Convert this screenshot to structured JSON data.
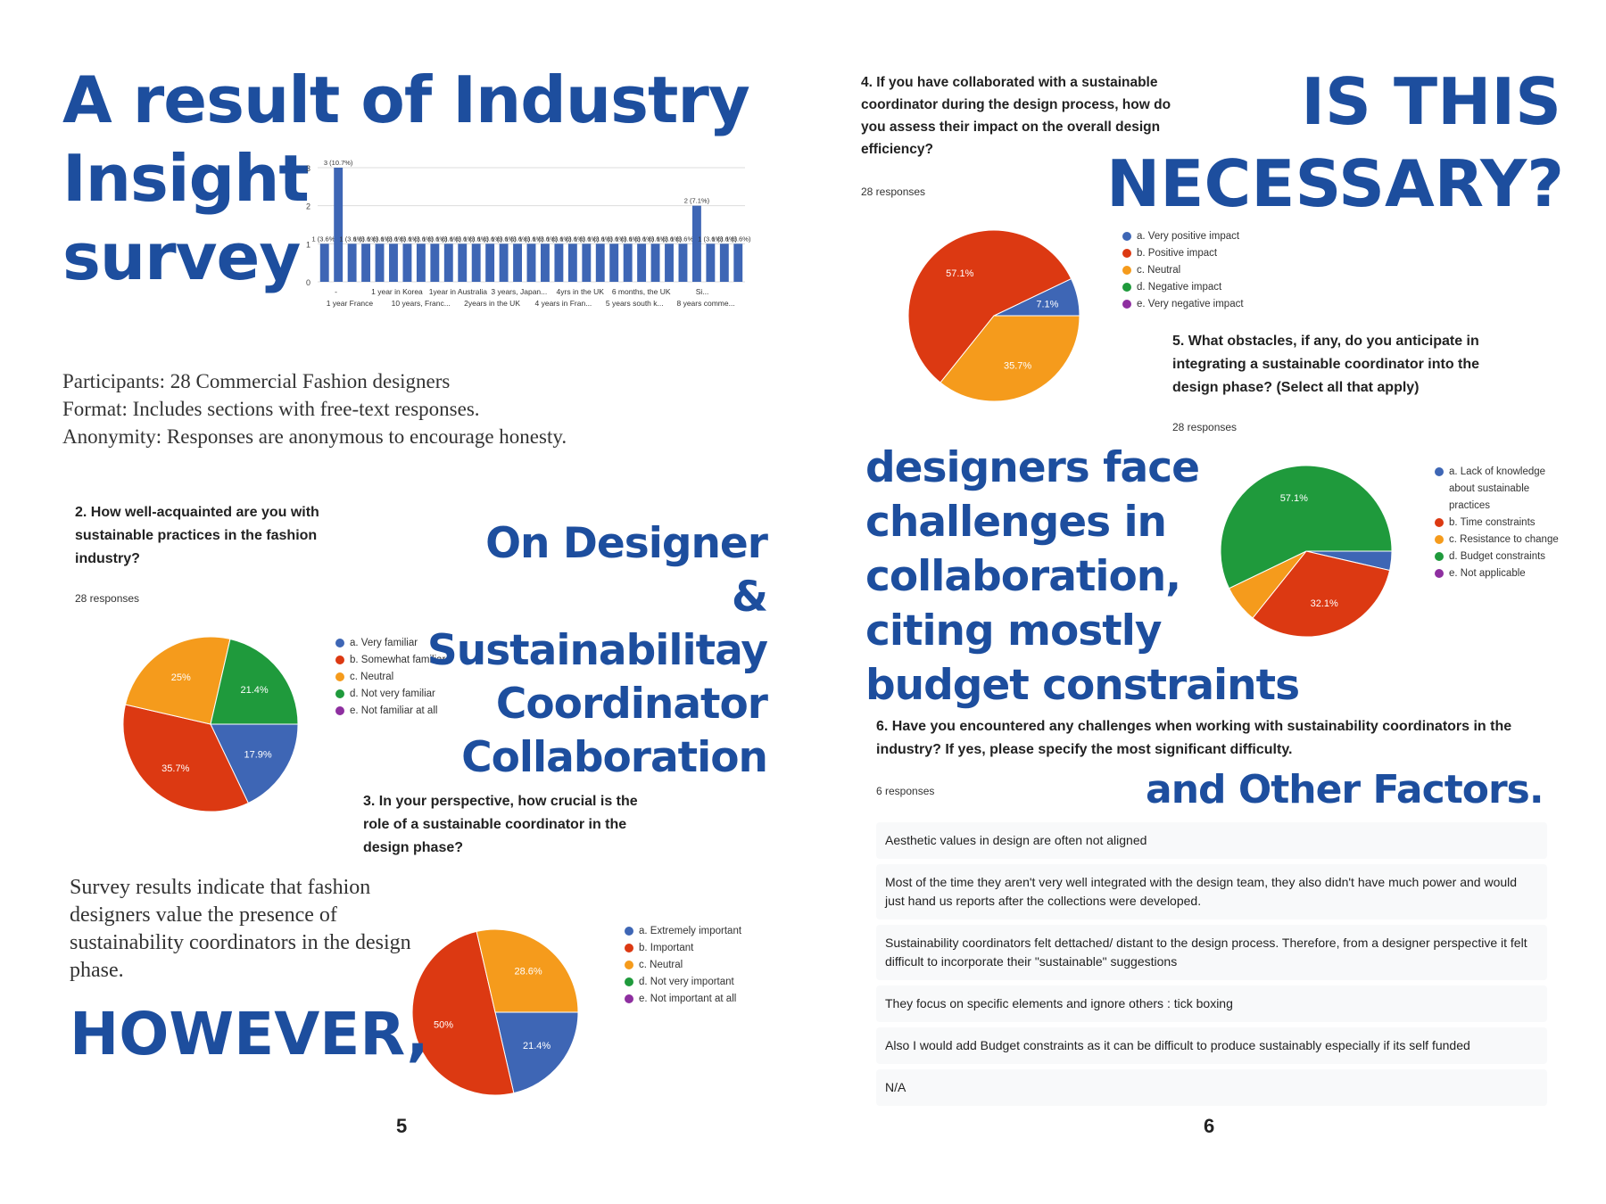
{
  "colors": {
    "blue": "#3e66b5",
    "red": "#dc3912",
    "orange": "#f59b1c",
    "green": "#1f9a3c",
    "purple": "#8e2fa0",
    "headline": "#1d4e9e"
  },
  "left_page": {
    "title_lines": [
      "A result of Industry",
      "Insight",
      "survey"
    ],
    "participants": "Participants: 28 Commercial Fashion designers",
    "format": "Format: Includes sections with free-text responses.",
    "anonymity": "Anonymity: Responses are anonymous to encourage honesty.",
    "collab_heading": [
      "On Designer",
      "& Sustainabilitay",
      "Coordinator",
      "Collaboration"
    ],
    "q2": {
      "text": "2. How well-acquainted are you with sustainable practices in the fashion industry?",
      "responses": "28 responses"
    },
    "q3": {
      "text": "3. In your perspective, how crucial is the role of a sustainable coordinator in the design phase?"
    },
    "summary": "Survey results indicate that fashion designers value the presence of sustainability coordinators in the design phase.",
    "however": "HOWEVER,",
    "page_number": "5"
  },
  "right_page": {
    "q4": {
      "text": "4. If you have collaborated with a sustainable coordinator during the design process, how do you assess their impact on the overall design efficiency?",
      "responses": "28 responses"
    },
    "necessary": [
      "IS THIS",
      "NECESSARY?"
    ],
    "q5": {
      "text": "5. What obstacles, if any, do you anticipate in integrating a sustainable coordinator into the design phase? (Select all that apply)",
      "responses": "28 responses"
    },
    "challenges": [
      "designers face",
      "challenges in",
      "collaboration,",
      "citing mostly",
      "budget constraints"
    ],
    "q6": {
      "text": "6. Have you encountered any challenges when working with sustainability coordinators in the industry? If yes, please specify the most significant difficulty.",
      "responses": "6 responses"
    },
    "other_factors": "and Other Factors.",
    "answers": [
      "Aesthetic values in design are often not aligned",
      "Most of the time they aren't very well integrated with the design team, they also didn't have much power and would just hand us reports after the collections were developed.",
      "Sustainability coordinators felt dettached/ distant to the design process. Therefore, from a designer perspective it felt difficult to incorporate their \"sustainable\" suggestions",
      "They focus on specific elements and ignore others : tick boxing",
      "Also I would add Budget constraints as it can be difficult to produce sustainably especially if its self funded",
      "N/A"
    ],
    "page_number": "6"
  },
  "chart_data": [
    {
      "id": "experience",
      "type": "bar",
      "title": "",
      "ylim": [
        0,
        3
      ],
      "yticks": [
        0,
        1,
        2,
        3
      ],
      "values": [
        1,
        3,
        1,
        1,
        1,
        1,
        1,
        1,
        1,
        1,
        1,
        1,
        1,
        1,
        1,
        1,
        1,
        1,
        1,
        1,
        1,
        1,
        1,
        1,
        1,
        1,
        1,
        2,
        1,
        1,
        1
      ],
      "bar_labels": [
        "1 (3.6%)",
        "3 (10.7%)",
        "1 (3.6%)",
        "1 (3.6%)",
        "1 (3.6%)",
        "1 (3.6%)",
        "1 (3.6%)",
        "1 (3.6%)",
        "1 (3.6%)",
        "1 (3.6%)",
        "1 (3.6%)",
        "1 (3.6%)",
        "1 (3.6%)",
        "1 (3.6%)",
        "1 (3.6%)",
        "1 (3.6%)",
        "1 (3.6%)",
        "1 (3.6%)",
        "1 (3.6%)",
        "1 (3.6%)",
        "1 (3.6%)",
        "1 (3.6%)",
        "1 (3.6%)",
        "1 (3.6%)",
        "1 (3.6%)",
        "1 (3.6%)",
        "1 (3.6%)",
        "2 (7.1%)",
        "1 (3.6%)",
        "1 (3.6%)",
        "1 (3.6%)"
      ],
      "x_labels_row1": [
        "-",
        "1 year in Korea",
        "1year in Australia",
        "3 years, Japan...",
        "4yrs in the UK",
        "6 months, the UK",
        "Si..."
      ],
      "x_labels_row2": [
        "1 year France",
        "10 years, Franc...",
        "2years in the UK",
        "4 years in Fran...",
        "5 years south k...",
        "8 years comme..."
      ]
    },
    {
      "id": "q2",
      "type": "pie",
      "labels": [
        "a. Very familiar",
        "b. Somewhat familiar",
        "c. Neutral",
        "d. Not very familiar",
        "e. Not familiar at all"
      ],
      "values": [
        17.9,
        35.7,
        25,
        21.4,
        0
      ],
      "display": [
        "17.9%",
        "35.7%",
        "25%",
        "21.4%",
        ""
      ]
    },
    {
      "id": "q3",
      "type": "pie",
      "labels": [
        "a. Extremely important",
        "b. Important",
        "c. Neutral",
        "d. Not very important",
        "e. Not important at all"
      ],
      "values": [
        21.4,
        50,
        28.6,
        0,
        0
      ],
      "display": [
        "21.4%",
        "50%",
        "28.6%",
        "",
        ""
      ]
    },
    {
      "id": "q4",
      "type": "pie",
      "labels": [
        "a. Very positive impact",
        "b. Positive impact",
        "c. Neutral",
        "d. Negative impact",
        "e. Very negative impact"
      ],
      "values": [
        7.1,
        57.1,
        35.7,
        0,
        0
      ],
      "display": [
        "7.1%",
        "57.1%",
        "35.7%",
        "",
        ""
      ]
    },
    {
      "id": "q5",
      "type": "pie",
      "labels": [
        "a. Lack of knowledge about sustainable practices",
        "b. Time constraints",
        "c. Resistance to change",
        "d. Budget constraints",
        "e. Not applicable"
      ],
      "values": [
        3.6,
        32.1,
        7.1,
        57.1,
        0
      ],
      "display": [
        "",
        "32.1%",
        "",
        "57.1%",
        ""
      ]
    }
  ]
}
